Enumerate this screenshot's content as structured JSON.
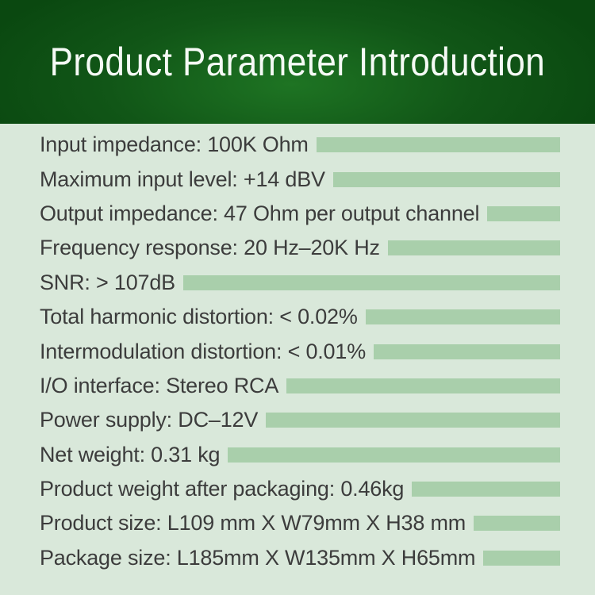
{
  "header": {
    "title": "Product Parameter Introduction"
  },
  "parameters": [
    {
      "label": "Input impedance: 100K Ohm"
    },
    {
      "label": "Maximum input level: +14 dBV"
    },
    {
      "label": "Output impedance: 47 Ohm per output channel"
    },
    {
      "label": "Frequency response: 20 Hz–20K Hz"
    },
    {
      "label": "SNR: > 107dB"
    },
    {
      "label": "Total harmonic distortion: < 0.02%"
    },
    {
      "label": "Intermodulation distortion: < 0.01%"
    },
    {
      "label": "I/O interface: Stereo RCA"
    },
    {
      "label": "Power supply: DC–12V"
    },
    {
      "label": "Net weight: 0.31 kg"
    },
    {
      "label": "Product weight after packaging: 0.46kg"
    },
    {
      "label": "Product size: L109 mm X W79mm X H38 mm"
    },
    {
      "label": "Package size: L185mm X W135mm X H65mm"
    }
  ],
  "colors": {
    "header_green_dark": "#0a4810",
    "header_green_mid": "#115617",
    "header_green_light": "#1e7423",
    "body_background": "#d9e8da",
    "highlight_bar": "#a9cfab",
    "text": "#3c3c3c",
    "title_text": "#f5faf5"
  }
}
